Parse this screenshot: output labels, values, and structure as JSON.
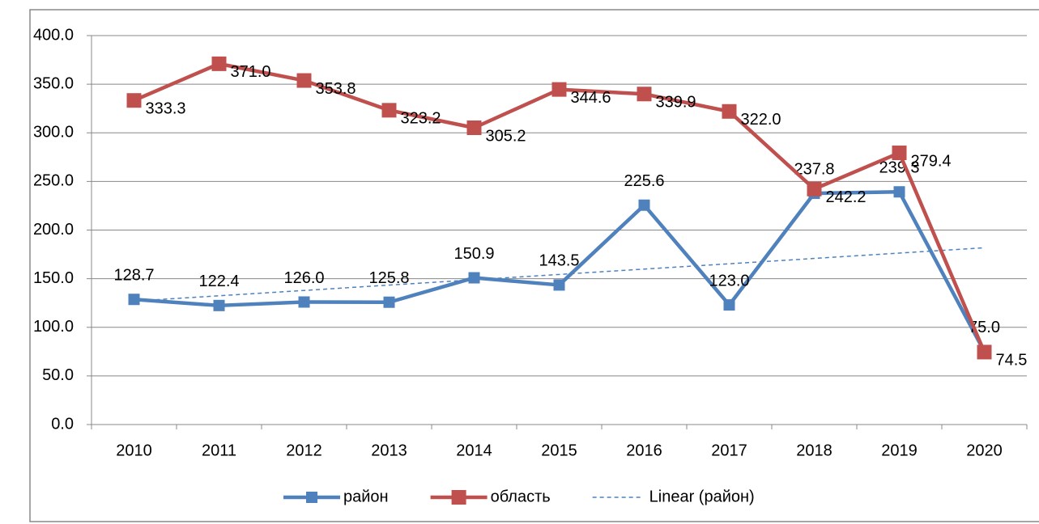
{
  "chart_data": {
    "type": "line",
    "categories": [
      "2010",
      "2011",
      "2012",
      "2013",
      "2014",
      "2015",
      "2016",
      "2017",
      "2018",
      "2019",
      "2020"
    ],
    "series": [
      {
        "name": "район",
        "color": "#4f81bd",
        "values": [
          128.7,
          122.4,
          126.0,
          125.8,
          150.9,
          143.5,
          225.6,
          123.0,
          237.8,
          239.3,
          75.0
        ],
        "value_labels": [
          "128.7",
          "122.4",
          "126.0",
          "125.8",
          "150.9",
          "143.5",
          "225.6",
          "123.0",
          "237.8",
          "239.3",
          "75.0"
        ]
      },
      {
        "name": "область",
        "color": "#c0504d",
        "values": [
          333.3,
          371.0,
          353.8,
          323.2,
          305.2,
          344.6,
          339.9,
          322.0,
          242.2,
          279.4,
          74.5
        ],
        "value_labels": [
          "333.3",
          "371.0",
          "353.8",
          "323.2",
          "305.2",
          "344.6",
          "339.9",
          "322.0",
          "242.2",
          "279.4",
          "74.5"
        ]
      }
    ],
    "trendline": {
      "name": "Linear (район)",
      "fit": "linear",
      "color": "#4f81bd"
    },
    "ylim": [
      0,
      400
    ],
    "yticks": [
      {
        "value": 0,
        "label": "0.0"
      },
      {
        "value": 50,
        "label": "50.0"
      },
      {
        "value": 100,
        "label": "100.0"
      },
      {
        "value": 150,
        "label": "150.0"
      },
      {
        "value": 200,
        "label": "200.0"
      },
      {
        "value": 250,
        "label": "250.0"
      },
      {
        "value": 300,
        "label": "300.0"
      },
      {
        "value": 350,
        "label": "350.0"
      },
      {
        "value": 400,
        "label": "400.0"
      }
    ],
    "grid": true,
    "legend": "bottom"
  }
}
